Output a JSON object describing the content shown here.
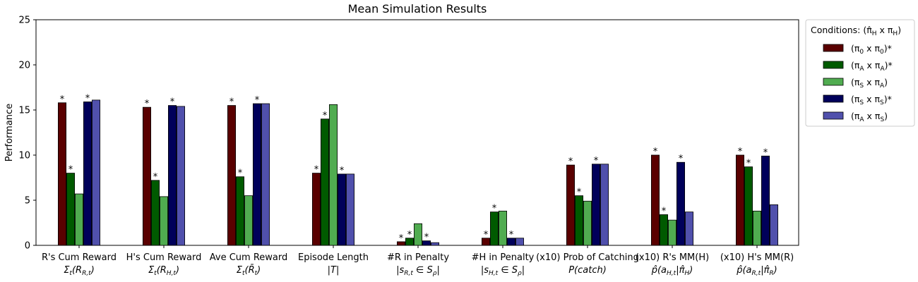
{
  "chart_data": {
    "type": "bar",
    "title": "Mean Simulation Results",
    "ylabel": "Performance",
    "xlabel": "",
    "ylim": [
      0,
      25
    ],
    "yticks": [
      0,
      5,
      10,
      15,
      20,
      25
    ],
    "categories": [
      {
        "line1": "R's Cum Reward",
        "line2": "Σ_t(R_(R,t))"
      },
      {
        "line1": "H's Cum Reward",
        "line2": "Σ_t(R_(H,t))"
      },
      {
        "line1": "Ave Cum Reward",
        "line2": "Σ_t(R̄_t)"
      },
      {
        "line1": "Episode Length",
        "line2": "|T|"
      },
      {
        "line1": "#R in Penalty",
        "line2": "|s_(R,t) ∈ S_ρ|"
      },
      {
        "line1": "#H in Penalty",
        "line2": "|s_(H,t) ∈ S_ρ|"
      },
      {
        "line1": "(x10) Prob of Catching",
        "line2": "P(catch)"
      },
      {
        "line1": "(x10) R's MM(H)",
        "line2": "p̂(a_(H,t)|π̂_H)"
      },
      {
        "line1": "(x10) H's MM(R)",
        "line2": "p̂(a_(R,t)|π̂_R)"
      }
    ],
    "series": [
      {
        "name": "(π0 x π0)*",
        "color": "#5a0000",
        "values": [
          15.8,
          15.3,
          15.5,
          8.0,
          0.4,
          0.8,
          8.9,
          10.0,
          10.0
        ],
        "stars": [
          true,
          true,
          true,
          true,
          true,
          true,
          true,
          true,
          true
        ]
      },
      {
        "name": "(πA x πA)*",
        "color": "#005a00",
        "values": [
          8.0,
          7.2,
          7.6,
          14.0,
          0.8,
          3.7,
          5.5,
          3.4,
          8.7
        ],
        "stars": [
          true,
          true,
          true,
          true,
          true,
          true,
          true,
          true,
          true
        ]
      },
      {
        "name": "(πS x πA)",
        "color": "#50ac50",
        "values": [
          5.7,
          5.4,
          5.5,
          15.6,
          2.4,
          3.8,
          4.9,
          2.8,
          3.8
        ],
        "stars": [
          false,
          false,
          false,
          false,
          false,
          false,
          false,
          false,
          false
        ]
      },
      {
        "name": "(πS x πS)*",
        "color": "#00005a",
        "values": [
          15.9,
          15.5,
          15.7,
          7.9,
          0.5,
          0.8,
          9.0,
          9.2,
          9.9
        ],
        "stars": [
          true,
          true,
          true,
          true,
          true,
          true,
          true,
          true,
          true
        ]
      },
      {
        "name": "(πA x πS)",
        "color": "#5050ac",
        "values": [
          16.1,
          15.4,
          15.7,
          7.9,
          0.3,
          0.8,
          9.0,
          3.7,
          4.5
        ],
        "stars": [
          false,
          false,
          false,
          false,
          false,
          false,
          false,
          false,
          false
        ]
      }
    ],
    "legend": {
      "title": "Conditions: (π̂_H x π_H)",
      "placement": "outside-right"
    },
    "star_symbol": "*",
    "grid": false
  }
}
